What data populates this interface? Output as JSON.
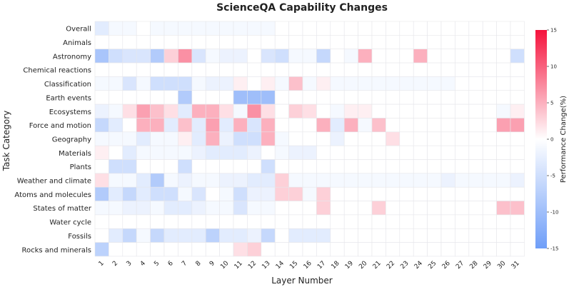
{
  "chart_data": {
    "type": "heatmap",
    "title": "ScienceQA Capability Changes",
    "xlabel": "Layer Number",
    "ylabel": "Task Category",
    "colorbar_label": "Performance Change(%)",
    "color_range": [
      -15,
      15
    ],
    "colorbar_ticks": [
      -15,
      -10,
      -5,
      0,
      5,
      10,
      15
    ],
    "colors": {
      "negative": "#6f9ef8",
      "neutral": "#ffffff",
      "positive": "#f5123c"
    },
    "x": [
      1,
      2,
      3,
      4,
      5,
      6,
      7,
      8,
      9,
      10,
      11,
      12,
      13,
      14,
      15,
      16,
      17,
      18,
      19,
      20,
      21,
      22,
      23,
      24,
      25,
      26,
      27,
      28,
      29,
      30,
      31
    ],
    "y": [
      "Overall",
      "Animals",
      "Astronomy",
      "Chemical reactions",
      "Classification",
      "Earth events",
      "Ecosystems",
      "Force and motion",
      "Geography",
      "Materials",
      "Plants",
      "Weather and climate",
      "Atoms and molecules",
      "States of matter",
      "Water cycle",
      "Fossils",
      "Rocks and minerals"
    ],
    "values": [
      [
        -3,
        -1,
        -1,
        0,
        -1,
        -1,
        -1,
        -1,
        -1,
        -1,
        -1,
        -1,
        -1,
        0,
        0,
        0,
        0,
        0,
        0,
        0,
        0,
        0,
        0,
        0,
        0,
        0,
        0,
        0,
        0,
        0,
        0
      ],
      [
        0,
        0,
        0,
        0,
        0,
        0,
        0,
        0,
        0,
        0,
        0,
        0,
        0,
        0,
        0,
        0,
        0,
        0,
        0,
        0,
        0,
        0,
        0,
        0,
        0,
        0,
        0,
        0,
        0,
        0,
        0
      ],
      [
        -9,
        -5,
        -4,
        -4,
        -8,
        3,
        7,
        -4,
        -1,
        -2,
        -2,
        0,
        -4,
        -5,
        -1,
        -1,
        -6,
        0,
        -1,
        5,
        0,
        0,
        0,
        5,
        0,
        0,
        0,
        0,
        0,
        0,
        -5
      ],
      [
        0,
        0,
        0,
        0,
        0,
        0,
        0,
        0,
        0,
        0,
        0,
        0,
        0,
        0,
        0,
        0,
        0,
        0,
        0,
        0,
        0,
        0,
        0,
        0,
        0,
        0,
        0,
        0,
        0,
        0,
        0
      ],
      [
        -1,
        -1,
        -4,
        -1,
        -5,
        -5,
        -5,
        -1,
        -2,
        -2,
        1,
        0,
        1,
        -1,
        4,
        -1,
        1,
        -1,
        -1,
        -1,
        -1,
        -1,
        -1,
        -1,
        -1,
        -1,
        0,
        0,
        0,
        0,
        0
      ],
      [
        0,
        0,
        0,
        0,
        0,
        0,
        -8,
        0,
        0,
        0,
        -10,
        -10,
        -10,
        0,
        0,
        0,
        0,
        0,
        0,
        0,
        0,
        0,
        0,
        0,
        0,
        0,
        0,
        0,
        0,
        0,
        0
      ],
      [
        -2,
        -1,
        2,
        6,
        4,
        2,
        -3,
        5,
        5,
        2,
        -1,
        7,
        2,
        0,
        3,
        2,
        0,
        -1,
        1,
        1,
        0,
        0,
        0,
        0,
        0,
        0,
        0,
        0,
        0,
        -1,
        1
      ],
      [
        -6,
        -3,
        0,
        5,
        5,
        -3,
        4,
        -3,
        6,
        -3,
        5,
        -4,
        5,
        0,
        0,
        0,
        5,
        -3,
        5,
        -1,
        4,
        0,
        0,
        0,
        0,
        0,
        0,
        0,
        0,
        6,
        6
      ],
      [
        -1,
        -1,
        -1,
        -3,
        -1,
        -1,
        1,
        -3,
        5,
        -2,
        -5,
        -5,
        5,
        -1,
        0,
        0,
        0,
        -2,
        0,
        0,
        0,
        2,
        0,
        0,
        0,
        0,
        0,
        0,
        0,
        0,
        0
      ],
      [
        1,
        0,
        -3,
        -1,
        -1,
        -1,
        -1,
        -2,
        -3,
        -3,
        -3,
        -2,
        0,
        -1,
        -2,
        -2,
        0,
        0,
        0,
        0,
        0,
        0,
        0,
        0,
        0,
        0,
        0,
        0,
        0,
        0,
        0
      ],
      [
        0,
        -5,
        -5,
        0,
        0,
        0,
        -5,
        0,
        0,
        0,
        0,
        0,
        -5,
        0,
        0,
        0,
        0,
        0,
        0,
        0,
        0,
        0,
        0,
        0,
        0,
        0,
        0,
        0,
        0,
        0,
        0
      ],
      [
        2,
        -1,
        -1,
        -3,
        -8,
        -1,
        -2,
        -1,
        -1,
        -2,
        -2,
        -3,
        -3,
        3,
        -1,
        -1,
        -1,
        -1,
        -1,
        -1,
        -1,
        -1,
        -1,
        -1,
        -1,
        -2,
        -1,
        -1,
        -1,
        -1,
        -2
      ],
      [
        -8,
        -3,
        -6,
        -3,
        -5,
        -5,
        -1,
        -4,
        0,
        -1,
        -5,
        -2,
        -2,
        3,
        3,
        -1,
        3,
        0,
        0,
        0,
        0,
        0,
        0,
        0,
        0,
        0,
        0,
        0,
        0,
        0,
        0
      ],
      [
        -1,
        -1,
        -2,
        -2,
        -1,
        -3,
        -3,
        -2,
        -1,
        -1,
        -4,
        -1,
        -1,
        0,
        0,
        0,
        3,
        0,
        0,
        0,
        3,
        0,
        0,
        0,
        0,
        0,
        0,
        0,
        0,
        4,
        4
      ],
      [
        0,
        0,
        0,
        0,
        0,
        0,
        0,
        0,
        0,
        0,
        0,
        0,
        0,
        0,
        0,
        0,
        0,
        0,
        0,
        0,
        0,
        0,
        0,
        0,
        0,
        0,
        0,
        0,
        0,
        0,
        0
      ],
      [
        0,
        -3,
        -6,
        -1,
        -6,
        -3,
        -3,
        -3,
        -7,
        -3,
        -3,
        -2,
        -6,
        0,
        -3,
        -3,
        -3,
        0,
        0,
        0,
        0,
        0,
        0,
        0,
        0,
        0,
        0,
        0,
        0,
        0,
        0
      ],
      [
        -7,
        0,
        0,
        0,
        0,
        0,
        0,
        0,
        0,
        0,
        2,
        3,
        0,
        0,
        0,
        0,
        0,
        0,
        0,
        0,
        0,
        0,
        0,
        0,
        0,
        0,
        0,
        0,
        0,
        0,
        0
      ]
    ]
  }
}
